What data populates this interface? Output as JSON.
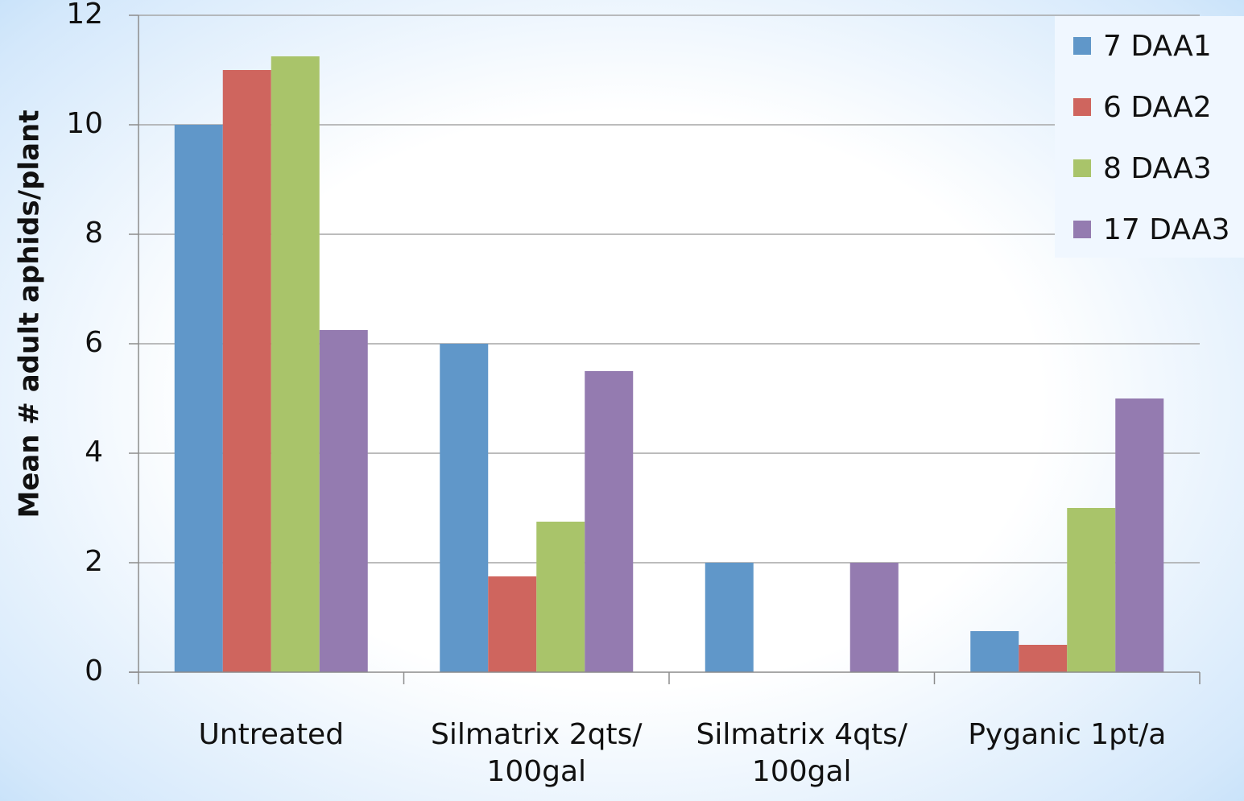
{
  "chart_data": {
    "type": "bar",
    "y_label": "Mean # adult aphids/plant",
    "categories": [
      "Untreated",
      "Silmatrix 2qts/ 100gal",
      "Silmatrix 4qts/ 100gal",
      "Pyganic 1pt/a"
    ],
    "series": [
      {
        "name": "7 DAA1",
        "color": "#6097c9",
        "values": [
          10,
          6,
          2,
          0.75
        ]
      },
      {
        "name": "6 DAA2",
        "color": "#cf655e",
        "values": [
          11,
          1.75,
          0,
          0.5
        ]
      },
      {
        "name": "8 DAA3",
        "color": "#a9c46a",
        "values": [
          11.25,
          2.75,
          0,
          3
        ]
      },
      {
        "name": "17 DAA3",
        "color": "#947bb0",
        "values": [
          6.25,
          5.5,
          2,
          5
        ]
      }
    ],
    "ylim": [
      0,
      12
    ],
    "yticks": [
      0,
      2,
      4,
      6,
      8,
      10,
      12
    ],
    "grid": true,
    "legend": "upper right"
  }
}
